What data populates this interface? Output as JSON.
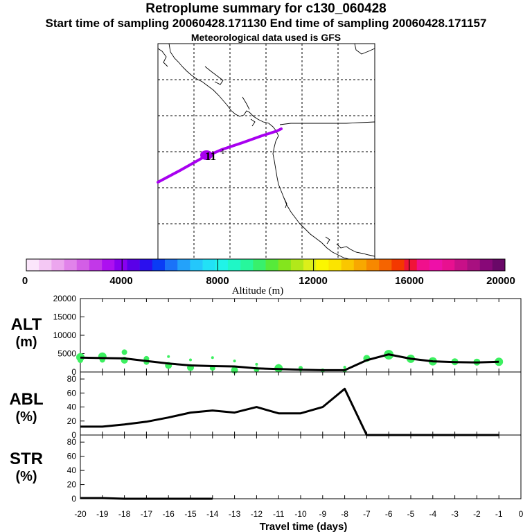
{
  "header": {
    "title": "Retroplume summary for c130_060428",
    "sampling": "Start time of sampling 20060428.171130     End time of sampling 20060428.171157",
    "met": "Meteorological data used is GFS"
  },
  "colorbar": {
    "label": "Altitude (m)",
    "ticks": [
      "0",
      "4000",
      "8000",
      "12000",
      "16000",
      "20000"
    ],
    "colors": [
      "#fbe6fb",
      "#f4c8f4",
      "#eca6ee",
      "#e183ea",
      "#d35ee6",
      "#c238e8",
      "#ad10f0",
      "#8800f0",
      "#5a00e8",
      "#2b10ee",
      "#0a3cf5",
      "#1a72f8",
      "#23a2fa",
      "#24c7fb",
      "#22e1f6",
      "#20f4e8",
      "#1ff7c6",
      "#27f79c",
      "#38f06c",
      "#56ea3a",
      "#84e51d",
      "#b2e81a",
      "#dcef1a",
      "#fbf700",
      "#fbe400",
      "#fac700",
      "#f8a800",
      "#f78800",
      "#f56400",
      "#f43800",
      "#f01438",
      "#f0108c",
      "#ee10a8",
      "#e81090",
      "#c81088",
      "#a81080",
      "#880878",
      "#6a0868"
    ]
  },
  "chart_data": [
    {
      "type": "line",
      "panel": "ALT",
      "ylabel": "ALT (m)",
      "x": [
        -20,
        -19,
        -18,
        -17,
        -16,
        -15,
        -14,
        -13,
        -12,
        -11,
        -10,
        -9,
        -8,
        -7,
        -6,
        -5,
        -4,
        -3,
        -2,
        -1
      ],
      "series": [
        {
          "name": "mean altitude",
          "values": [
            3900,
            3800,
            3700,
            3000,
            2300,
            1800,
            1600,
            1500,
            1000,
            800,
            600,
            500,
            500,
            3200,
            4800,
            3600,
            2900,
            2700,
            2600,
            2800
          ]
        }
      ],
      "scatter": [
        {
          "x": -20,
          "y": 4000,
          "r": 6
        },
        {
          "x": -20,
          "y": 3200,
          "r": 4
        },
        {
          "x": -19,
          "y": 4200,
          "r": 6
        },
        {
          "x": -19,
          "y": 3300,
          "r": 4
        },
        {
          "x": -18,
          "y": 5400,
          "r": 4
        },
        {
          "x": -18,
          "y": 3200,
          "r": 5
        },
        {
          "x": -17,
          "y": 3600,
          "r": 4
        },
        {
          "x": -17,
          "y": 2700,
          "r": 4
        },
        {
          "x": -16,
          "y": 4200,
          "r": 2
        },
        {
          "x": -16,
          "y": 1800,
          "r": 5
        },
        {
          "x": -15,
          "y": 3300,
          "r": 2
        },
        {
          "x": -15,
          "y": 1200,
          "r": 5
        },
        {
          "x": -14,
          "y": 3900,
          "r": 2
        },
        {
          "x": -14,
          "y": 1100,
          "r": 4
        },
        {
          "x": -13,
          "y": 3000,
          "r": 2
        },
        {
          "x": -13,
          "y": 500,
          "r": 5
        },
        {
          "x": -12,
          "y": 2100,
          "r": 2
        },
        {
          "x": -12,
          "y": 700,
          "r": 4
        },
        {
          "x": -11,
          "y": 1800,
          "r": 2
        },
        {
          "x": -11,
          "y": 1000,
          "r": 6
        },
        {
          "x": -10,
          "y": 1100,
          "r": 3
        },
        {
          "x": -10,
          "y": 500,
          "r": 2
        },
        {
          "x": -9,
          "y": 400,
          "r": 3
        },
        {
          "x": -8,
          "y": 1300,
          "r": 2
        },
        {
          "x": -8,
          "y": 400,
          "r": 3
        },
        {
          "x": -7,
          "y": 3700,
          "r": 5
        },
        {
          "x": -6,
          "y": 4700,
          "r": 7
        },
        {
          "x": -5,
          "y": 3600,
          "r": 6
        },
        {
          "x": -4,
          "y": 2900,
          "r": 6
        },
        {
          "x": -3,
          "y": 2800,
          "r": 5
        },
        {
          "x": -2,
          "y": 2700,
          "r": 5
        },
        {
          "x": -1,
          "y": 2800,
          "r": 6
        }
      ],
      "ylim": [
        0,
        20000
      ],
      "yticks": [
        "0",
        "5000",
        "10000",
        "15000",
        "20000"
      ]
    },
    {
      "type": "line",
      "panel": "ABL",
      "ylabel": "ABL (%)",
      "x": [
        -20,
        -19,
        -18,
        -17,
        -16,
        -15,
        -14,
        -13,
        -12,
        -11,
        -10,
        -9,
        -8,
        -7,
        -6,
        -5,
        -4,
        -3,
        -2,
        -1
      ],
      "series": [
        {
          "name": "ABL fraction",
          "values": [
            12,
            12,
            15,
            19,
            25,
            32,
            35,
            32,
            40,
            31,
            31,
            40,
            66,
            0,
            0,
            0,
            0,
            0,
            0,
            0
          ]
        }
      ],
      "ylim": [
        0,
        90
      ],
      "yticks": [
        "0",
        "20",
        "40",
        "60",
        "80"
      ]
    },
    {
      "type": "line",
      "panel": "STR",
      "ylabel": "STR (%)",
      "x": [
        -20,
        -19,
        -18,
        -17,
        -16,
        -15,
        -14
      ],
      "series": [
        {
          "name": "STR fraction",
          "values": [
            1,
            1,
            0,
            0,
            0,
            0,
            0
          ]
        }
      ],
      "ylim": [
        0,
        90
      ],
      "yticks": [
        "0",
        "20",
        "40",
        "60",
        "80"
      ]
    }
  ],
  "xaxis": {
    "label": "Travel time (days)",
    "ticks": [
      "-20",
      "-19",
      "-18",
      "-17",
      "-16",
      "-15",
      "-14",
      "-13",
      "-12",
      "-11",
      "-10",
      "-9",
      "-8",
      "-7",
      "-6",
      "-5",
      "-4",
      "-3",
      "-2",
      "-1",
      "0"
    ],
    "xlim": [
      -20,
      0
    ]
  },
  "map": {
    "marker_labels": [
      "11",
      "1"
    ]
  },
  "colors": {
    "line": "#000000",
    "scatter": "#3cf060",
    "trajectory": "#a800f0"
  }
}
